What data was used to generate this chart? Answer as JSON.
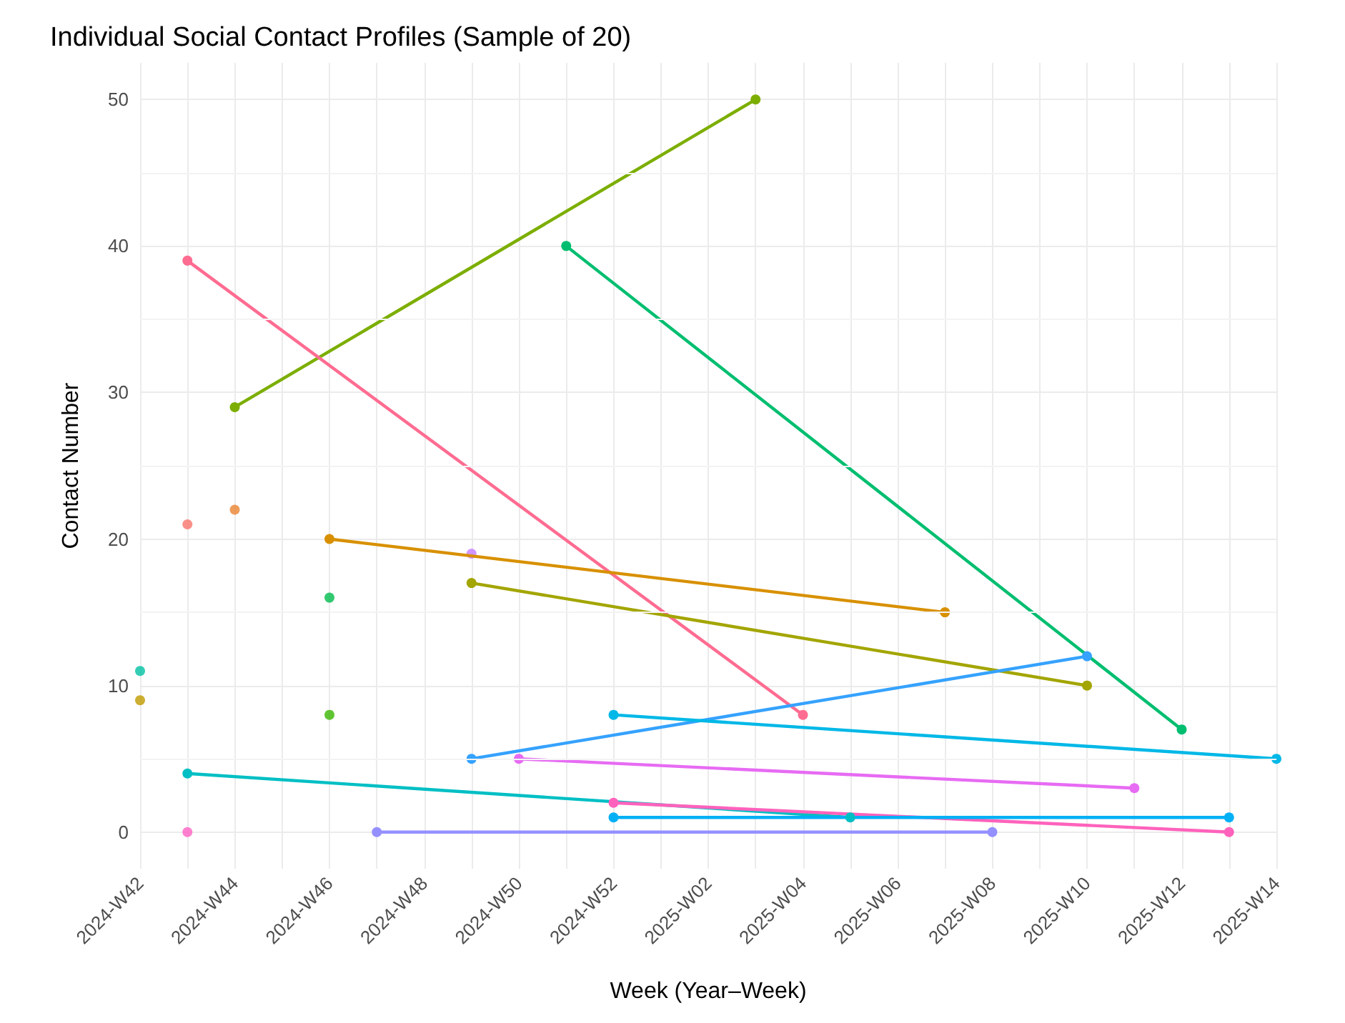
{
  "chart_data": {
    "type": "line",
    "title": "Individual Social Contact Profiles (Sample of 20)",
    "xlabel": "Week (Year–Week)",
    "ylabel": "Contact Number",
    "categories": [
      "2024-W42",
      null,
      "2024-W44",
      null,
      "2024-W46",
      null,
      "2024-W48",
      null,
      "2024-W50",
      null,
      "2024-W52",
      null,
      "2025-W02",
      null,
      "2025-W04",
      null,
      "2025-W06",
      null,
      "2025-W08",
      null,
      "2025-W10",
      null,
      "2025-W12",
      null,
      "2025-W14"
    ],
    "ylim": [
      -2.5,
      52.5
    ],
    "yticks": [
      0,
      10,
      20,
      30,
      40,
      50
    ],
    "grid": true,
    "marker": "circle",
    "line_style": "solid",
    "series": [
      {
        "color": "#7cae00",
        "values": [
          null,
          null,
          29,
          null,
          null,
          null,
          null,
          null,
          null,
          null,
          null,
          null,
          null,
          50,
          null,
          null,
          null,
          null,
          null,
          null,
          null,
          null,
          null,
          null,
          null
        ]
      },
      {
        "color": "#ff6c91",
        "values": [
          null,
          39,
          null,
          null,
          null,
          null,
          null,
          null,
          null,
          null,
          null,
          null,
          null,
          null,
          8,
          null,
          null,
          null,
          null,
          null,
          null,
          null,
          null,
          null,
          null
        ]
      },
      {
        "color": "#00be70",
        "values": [
          null,
          null,
          null,
          null,
          null,
          null,
          null,
          null,
          null,
          40,
          null,
          null,
          null,
          null,
          null,
          null,
          null,
          null,
          null,
          null,
          null,
          null,
          7,
          null,
          null
        ]
      },
      {
        "color": "#d89000",
        "values": [
          null,
          null,
          null,
          null,
          20,
          null,
          null,
          null,
          null,
          null,
          null,
          null,
          null,
          null,
          null,
          null,
          null,
          15,
          null,
          null,
          null,
          null,
          null,
          null,
          null
        ]
      },
      {
        "color": "#a3a500",
        "values": [
          null,
          null,
          null,
          null,
          null,
          null,
          null,
          17,
          null,
          null,
          null,
          null,
          null,
          null,
          null,
          null,
          null,
          null,
          null,
          null,
          10,
          null,
          null,
          null,
          null
        ]
      },
      {
        "color": "#35a2ff",
        "values": [
          null,
          null,
          null,
          null,
          null,
          null,
          null,
          5,
          null,
          null,
          null,
          null,
          null,
          null,
          null,
          null,
          null,
          null,
          null,
          null,
          12,
          null,
          null,
          null,
          null
        ]
      },
      {
        "color": "#00b8e7",
        "values": [
          null,
          null,
          null,
          null,
          null,
          null,
          null,
          null,
          null,
          null,
          8,
          null,
          null,
          null,
          null,
          null,
          null,
          null,
          null,
          null,
          null,
          null,
          null,
          null,
          5
        ]
      },
      {
        "color": "#e76bf3",
        "values": [
          null,
          null,
          null,
          null,
          null,
          null,
          null,
          null,
          5,
          null,
          null,
          null,
          null,
          null,
          null,
          null,
          null,
          null,
          null,
          null,
          null,
          3,
          null,
          null,
          null
        ]
      },
      {
        "color": "#00bfc4",
        "values": [
          null,
          4,
          null,
          null,
          null,
          null,
          null,
          null,
          null,
          null,
          null,
          null,
          null,
          null,
          null,
          1,
          null,
          null,
          null,
          null,
          null,
          null,
          null,
          null,
          null
        ]
      },
      {
        "color": "#ff62bc",
        "values": [
          null,
          null,
          null,
          null,
          null,
          null,
          null,
          null,
          null,
          null,
          2,
          null,
          null,
          null,
          null,
          null,
          null,
          null,
          null,
          null,
          null,
          null,
          null,
          0,
          null
        ]
      },
      {
        "color": "#00b0f6",
        "values": [
          null,
          null,
          null,
          null,
          null,
          null,
          null,
          null,
          null,
          null,
          1,
          null,
          null,
          null,
          null,
          null,
          null,
          null,
          null,
          null,
          null,
          null,
          null,
          1,
          null
        ]
      },
      {
        "color": "#9590ff",
        "values": [
          null,
          null,
          null,
          null,
          null,
          0,
          null,
          null,
          null,
          null,
          null,
          null,
          null,
          null,
          null,
          null,
          null,
          null,
          0,
          null,
          null,
          null,
          null,
          null,
          null
        ]
      },
      {
        "type": "scatter",
        "color": "#00c1a3",
        "values": [
          11,
          null,
          null,
          null,
          null,
          null,
          null,
          null,
          null,
          null,
          null,
          null,
          null,
          null,
          null,
          null,
          null,
          null,
          null,
          null,
          null,
          null,
          null,
          null,
          null
        ]
      },
      {
        "type": "scatter",
        "color": "#c09b00",
        "values": [
          9,
          null,
          null,
          null,
          null,
          null,
          null,
          null,
          null,
          null,
          null,
          null,
          null,
          null,
          null,
          null,
          null,
          null,
          null,
          null,
          null,
          null,
          null,
          null,
          null
        ]
      },
      {
        "type": "scatter",
        "color": "#f8766d",
        "values": [
          null,
          21,
          null,
          null,
          null,
          null,
          null,
          null,
          null,
          null,
          null,
          null,
          null,
          null,
          null,
          null,
          null,
          null,
          null,
          null,
          null,
          null,
          null,
          null,
          null
        ]
      },
      {
        "type": "scatter",
        "color": "#ff61c3",
        "values": [
          null,
          0,
          null,
          null,
          null,
          null,
          null,
          null,
          null,
          null,
          null,
          null,
          null,
          null,
          null,
          null,
          null,
          null,
          null,
          null,
          null,
          null,
          null,
          null,
          null
        ]
      },
      {
        "type": "scatter",
        "color": "#ea8331",
        "values": [
          null,
          null,
          22,
          null,
          null,
          null,
          null,
          null,
          null,
          null,
          null,
          null,
          null,
          null,
          null,
          null,
          null,
          null,
          null,
          null,
          null,
          null,
          null,
          null,
          null
        ]
      },
      {
        "type": "scatter",
        "color": "#00bb4e",
        "values": [
          null,
          null,
          null,
          null,
          16,
          null,
          null,
          null,
          null,
          null,
          null,
          null,
          null,
          null,
          null,
          null,
          null,
          null,
          null,
          null,
          null,
          null,
          null,
          null,
          null
        ]
      },
      {
        "type": "scatter",
        "color": "#39b600",
        "values": [
          null,
          null,
          null,
          null,
          8,
          null,
          null,
          null,
          null,
          null,
          null,
          null,
          null,
          null,
          null,
          null,
          null,
          null,
          null,
          null,
          null,
          null,
          null,
          null,
          null
        ]
      },
      {
        "type": "scatter",
        "color": "#c77cff",
        "values": [
          null,
          null,
          null,
          null,
          null,
          null,
          null,
          19,
          null,
          null,
          null,
          null,
          null,
          null,
          null,
          null,
          null,
          null,
          null,
          null,
          null,
          null,
          null,
          null,
          null
        ]
      }
    ]
  }
}
